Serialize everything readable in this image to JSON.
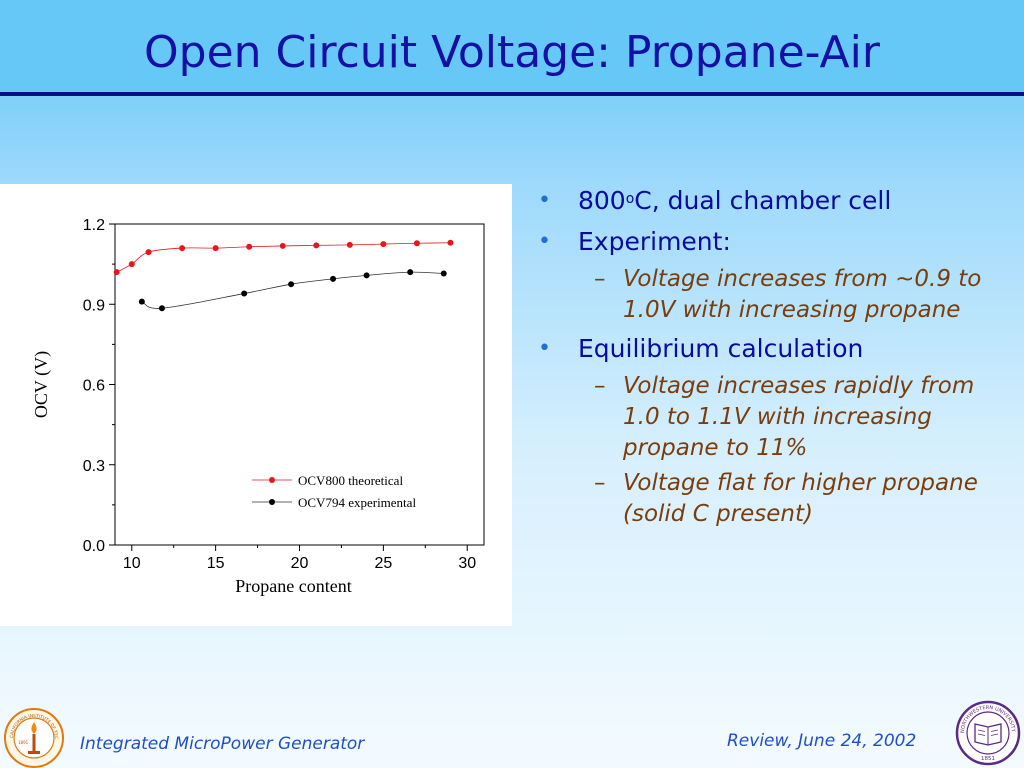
{
  "title": "Open Circuit Voltage: Propane-Air",
  "bullets": [
    {
      "pre": "800",
      "sup": "o",
      "post": "C, dual chamber cell",
      "subs": []
    },
    {
      "pre": "Experiment:",
      "sup": "",
      "post": "",
      "subs": [
        "Voltage increases from ~0.9 to 1.0V with increasing propane"
      ]
    },
    {
      "pre": "Equilibrium calculation",
      "sup": "",
      "post": "",
      "subs": [
        "Voltage increases rapidly from 1.0 to 1.1V with increasing propane to 11%",
        "Voltage flat for higher propane (solid C present)"
      ]
    }
  ],
  "footer": {
    "left": "Integrated MicroPower Generator",
    "right": "Review, June 24, 2002"
  },
  "logos": {
    "left": {
      "ring_text": "CALIFORNIA INSTITUTE OF TECHNOLOGY",
      "year": "1891",
      "icon": "torch-seal-icon"
    },
    "right": {
      "ring_text": "NORTHWESTERN UNIVERSITY",
      "year": "1851",
      "icon": "book-seal-icon"
    }
  },
  "colors": {
    "title": "#1410a6",
    "rule": "#000f8c",
    "bullet_text": "#0a0a9e",
    "sub_text": "#7b3d0c",
    "footer": "#1e4fc8",
    "series_theoretical": "#e8151b",
    "series_experimental": "#000000"
  },
  "chart_data": {
    "type": "scatter",
    "xlabel": "Propane content",
    "ylabel": "OCV (V)",
    "xlim": [
      9,
      31
    ],
    "ylim": [
      0.0,
      1.2
    ],
    "xticks": [
      10,
      15,
      20,
      25,
      30
    ],
    "yticks": [
      "0.0",
      "0.3",
      "0.6",
      "0.9",
      "1.2"
    ],
    "legend_position": "bottom-right",
    "series": [
      {
        "name": "OCV800 theoretical",
        "color": "#e8151b",
        "x": [
          9.1,
          10.0,
          11.0,
          13.0,
          15.0,
          17.0,
          19.0,
          21.0,
          23.0,
          25.0,
          27.0,
          29.0
        ],
        "y": [
          1.02,
          1.05,
          1.095,
          1.11,
          1.11,
          1.115,
          1.118,
          1.12,
          1.122,
          1.125,
          1.128,
          1.13
        ]
      },
      {
        "name": "OCV794 experimental",
        "color": "#000000",
        "x": [
          10.6,
          11.8,
          16.7,
          19.5,
          22.0,
          24.0,
          26.6,
          28.6
        ],
        "y": [
          0.91,
          0.885,
          0.94,
          0.975,
          0.995,
          1.008,
          1.02,
          1.015
        ]
      }
    ]
  }
}
